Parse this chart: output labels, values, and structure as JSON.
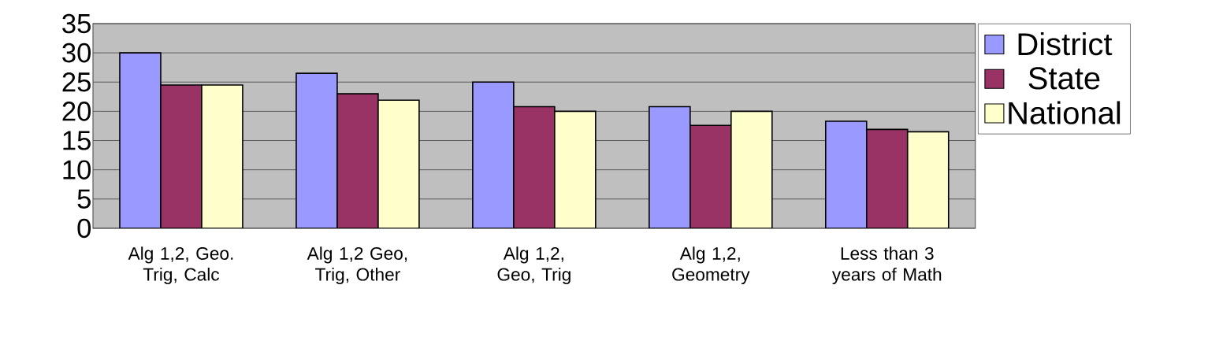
{
  "chart_data": {
    "type": "bar",
    "categories": [
      "Alg 1,2, Geo. Trig, Calc",
      "Alg 1,2 Geo, Trig, Other",
      "Alg 1,2, Geo, Trig",
      "Alg 1,2, Geometry",
      "Less than 3 years of Math"
    ],
    "series": [
      {
        "name": "District",
        "color": "#9999ff",
        "values": [
          30,
          26.5,
          25,
          20.8,
          18.3
        ]
      },
      {
        "name": "State",
        "color": "#993366",
        "values": [
          24.5,
          23,
          20.8,
          17.6,
          16.9
        ]
      },
      {
        "name": "National",
        "color": "#ffffcc",
        "values": [
          24.5,
          21.9,
          20,
          20,
          16.5
        ]
      }
    ],
    "ylim": [
      0,
      35
    ],
    "yticks": [
      0,
      5,
      10,
      15,
      20,
      25,
      30,
      35
    ],
    "grid": "y",
    "legend": "right"
  }
}
